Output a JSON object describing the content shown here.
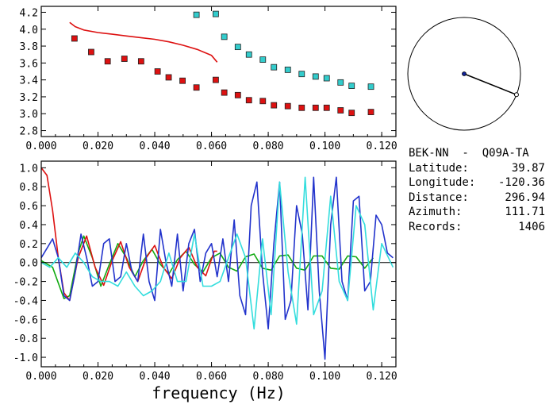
{
  "chart_data": [
    {
      "type": "scatter",
      "xlim": [
        0.0,
        0.125
      ],
      "ylim": [
        2.73,
        4.27
      ],
      "xticks": [
        "0.000",
        "0.020",
        "0.040",
        "0.060",
        "0.080",
        "0.100",
        "0.120"
      ],
      "yticks": [
        "2.8",
        "3.0",
        "3.2",
        "3.4",
        "3.6",
        "3.8",
        "4.0",
        "4.2"
      ],
      "xtick_values": [
        0,
        0.02,
        0.04,
        0.06,
        0.08,
        0.1,
        0.12
      ],
      "ytick_values": [
        2.8,
        3.0,
        3.2,
        3.4,
        3.6,
        3.8,
        4.0,
        4.2
      ],
      "grid": false,
      "series": [
        {
          "color": "#dd1111",
          "kind": "line",
          "x": [
            0.01,
            0.012,
            0.015,
            0.02,
            0.025,
            0.03,
            0.035,
            0.04,
            0.045,
            0.05,
            0.055,
            0.06,
            0.062
          ],
          "y": [
            4.08,
            4.03,
            3.99,
            3.96,
            3.94,
            3.92,
            3.9,
            3.88,
            3.85,
            3.81,
            3.76,
            3.69,
            3.61
          ]
        },
        {
          "color": "#dd1111",
          "kind": "squares",
          "x": [
            0.0117,
            0.0176,
            0.0234,
            0.0293,
            0.0352,
            0.041,
            0.0449,
            0.0498,
            0.0547,
            0.0615,
            0.0645,
            0.0693,
            0.0732,
            0.0781,
            0.082,
            0.0869,
            0.0918,
            0.0967,
            0.1006,
            0.1055,
            0.1094,
            0.1162
          ],
          "y": [
            3.89,
            3.73,
            3.62,
            3.65,
            3.62,
            3.5,
            3.43,
            3.39,
            3.31,
            3.4,
            3.25,
            3.22,
            3.16,
            3.15,
            3.1,
            3.09,
            3.07,
            3.07,
            3.07,
            3.04,
            3.01,
            3.02
          ]
        },
        {
          "color": "#33cccc",
          "kind": "squares",
          "x": [
            0.0547,
            0.0615,
            0.0645,
            0.0693,
            0.0732,
            0.0781,
            0.082,
            0.0869,
            0.0918,
            0.0967,
            0.1006,
            0.1055,
            0.1094,
            0.1162
          ],
          "y": [
            4.17,
            4.18,
            3.91,
            3.79,
            3.7,
            3.64,
            3.55,
            3.52,
            3.47,
            3.44,
            3.42,
            3.37,
            3.33,
            3.32
          ]
        }
      ]
    },
    {
      "type": "line",
      "xlim": [
        0.0,
        0.125
      ],
      "ylim": [
        -1.1,
        1.07
      ],
      "xticks": [
        "0.000",
        "0.020",
        "0.040",
        "0.060",
        "0.080",
        "0.100",
        "0.120"
      ],
      "yticks": [
        "-1.0",
        "-0.8",
        "-0.6",
        "-0.4",
        "-0.2",
        "0.0",
        "0.2",
        "0.4",
        "0.6",
        "0.8",
        "1.0"
      ],
      "xtick_values": [
        0,
        0.02,
        0.04,
        0.06,
        0.08,
        0.1,
        0.12
      ],
      "ytick_values": [
        -1.0,
        -0.8,
        -0.6,
        -0.4,
        -0.2,
        0.0,
        0.2,
        0.4,
        0.6,
        0.8,
        1.0
      ],
      "xlabel": "frequency  (Hz)",
      "zero_line": true,
      "grid": false,
      "series": [
        {
          "color": "#11aa11",
          "x": [
            0.0,
            0.004,
            0.008,
            0.01,
            0.013,
            0.015,
            0.018,
            0.021,
            0.024,
            0.027,
            0.03,
            0.033,
            0.036,
            0.039,
            0.042,
            0.045,
            0.048,
            0.051,
            0.054,
            0.057,
            0.06,
            0.063,
            0.066,
            0.069,
            0.072,
            0.075,
            0.078,
            0.081,
            0.084,
            0.087,
            0.09,
            0.093,
            0.096,
            0.099,
            0.102,
            0.105,
            0.108,
            0.111,
            0.114,
            0.117
          ],
          "y": [
            0.02,
            -0.05,
            -0.38,
            -0.35,
            0.1,
            0.28,
            0.05,
            -0.25,
            -0.02,
            0.2,
            0.05,
            -0.15,
            0.02,
            0.14,
            -0.02,
            -0.12,
            0.03,
            0.12,
            -0.02,
            -0.1,
            0.05,
            0.1,
            -0.05,
            -0.09,
            0.06,
            0.09,
            -0.06,
            -0.08,
            0.07,
            0.08,
            -0.06,
            -0.08,
            0.07,
            0.07,
            -0.06,
            -0.07,
            0.07,
            0.06,
            -0.06,
            0.05
          ]
        },
        {
          "color": "#dd1111",
          "x": [
            0.0,
            0.002,
            0.004,
            0.006,
            0.008,
            0.01,
            0.013,
            0.016,
            0.019,
            0.022,
            0.025,
            0.028,
            0.031,
            0.034,
            0.037,
            0.04,
            0.043,
            0.046,
            0.049,
            0.052,
            0.055,
            0.058,
            0.061,
            0.062
          ],
          "y": [
            1.0,
            0.92,
            0.55,
            0.05,
            -0.32,
            -0.4,
            0.05,
            0.28,
            -0.05,
            -0.24,
            0.02,
            0.22,
            -0.05,
            -0.2,
            0.05,
            0.18,
            -0.05,
            -0.17,
            0.05,
            0.16,
            -0.05,
            -0.14,
            0.12,
            0.12
          ]
        },
        {
          "color": "#2233cc",
          "x": [
            0.0,
            0.002,
            0.004,
            0.006,
            0.008,
            0.01,
            0.012,
            0.014,
            0.016,
            0.018,
            0.02,
            0.022,
            0.024,
            0.026,
            0.028,
            0.03,
            0.032,
            0.034,
            0.036,
            0.038,
            0.04,
            0.042,
            0.044,
            0.046,
            0.048,
            0.05,
            0.052,
            0.054,
            0.056,
            0.058,
            0.06,
            0.062,
            0.064,
            0.066,
            0.068,
            0.07,
            0.072,
            0.074,
            0.076,
            0.078,
            0.08,
            0.082,
            0.084,
            0.086,
            0.088,
            0.09,
            0.092,
            0.094,
            0.096,
            0.098,
            0.1,
            0.102,
            0.104,
            0.106,
            0.108,
            0.11,
            0.112,
            0.114,
            0.116,
            0.118,
            0.12,
            0.122,
            0.124
          ],
          "y": [
            0.05,
            0.15,
            0.25,
            0.05,
            -0.35,
            -0.4,
            -0.1,
            0.3,
            0.05,
            -0.25,
            -0.2,
            0.2,
            0.25,
            -0.2,
            -0.15,
            0.2,
            -0.1,
            -0.2,
            0.3,
            -0.2,
            -0.4,
            0.35,
            0.0,
            -0.25,
            0.3,
            -0.3,
            0.2,
            0.35,
            -0.2,
            0.1,
            0.2,
            -0.15,
            0.25,
            -0.2,
            0.45,
            -0.35,
            -0.55,
            0.6,
            0.85,
            -0.1,
            -0.7,
            0.2,
            0.85,
            -0.6,
            -0.4,
            0.6,
            0.3,
            -0.5,
            0.9,
            -0.3,
            -1.02,
            0.4,
            0.9,
            -0.2,
            -0.4,
            0.65,
            0.7,
            -0.3,
            -0.2,
            0.5,
            0.4,
            0.1,
            0.05
          ]
        },
        {
          "color": "#33dddd",
          "x": [
            0.0,
            0.003,
            0.006,
            0.009,
            0.012,
            0.015,
            0.018,
            0.021,
            0.024,
            0.027,
            0.03,
            0.033,
            0.036,
            0.039,
            0.042,
            0.045,
            0.048,
            0.051,
            0.054,
            0.057,
            0.06,
            0.063,
            0.066,
            0.069,
            0.072,
            0.075,
            0.078,
            0.081,
            0.084,
            0.087,
            0.09,
            0.093,
            0.096,
            0.099,
            0.102,
            0.105,
            0.108,
            0.111,
            0.114,
            0.117,
            0.12,
            0.124
          ],
          "y": [
            0.0,
            -0.05,
            0.05,
            -0.05,
            0.1,
            0.0,
            -0.15,
            -0.2,
            -0.2,
            -0.25,
            -0.1,
            -0.25,
            -0.35,
            -0.3,
            -0.2,
            0.1,
            -0.2,
            -0.2,
            0.3,
            -0.25,
            -0.25,
            -0.2,
            0.05,
            0.3,
            0.05,
            -0.7,
            0.25,
            -0.55,
            0.85,
            -0.1,
            -0.65,
            0.9,
            -0.55,
            -0.3,
            0.7,
            -0.2,
            -0.4,
            0.6,
            0.4,
            -0.5,
            0.2,
            -0.05
          ]
        }
      ]
    }
  ],
  "azimuth_plot": {
    "azimuth_deg": 111.71,
    "center_color": "#112299"
  },
  "station": {
    "name": "BEK-NN  -  Q09A-TA",
    "rows": [
      {
        "label": "Latitude:",
        "value": "39.87"
      },
      {
        "label": "Longitude:",
        "value": "-120.36"
      },
      {
        "label": "Distance:",
        "value": "296.94"
      },
      {
        "label": "Azimuth:",
        "value": "111.71"
      },
      {
        "label": "Records:",
        "value": "1406"
      }
    ]
  }
}
